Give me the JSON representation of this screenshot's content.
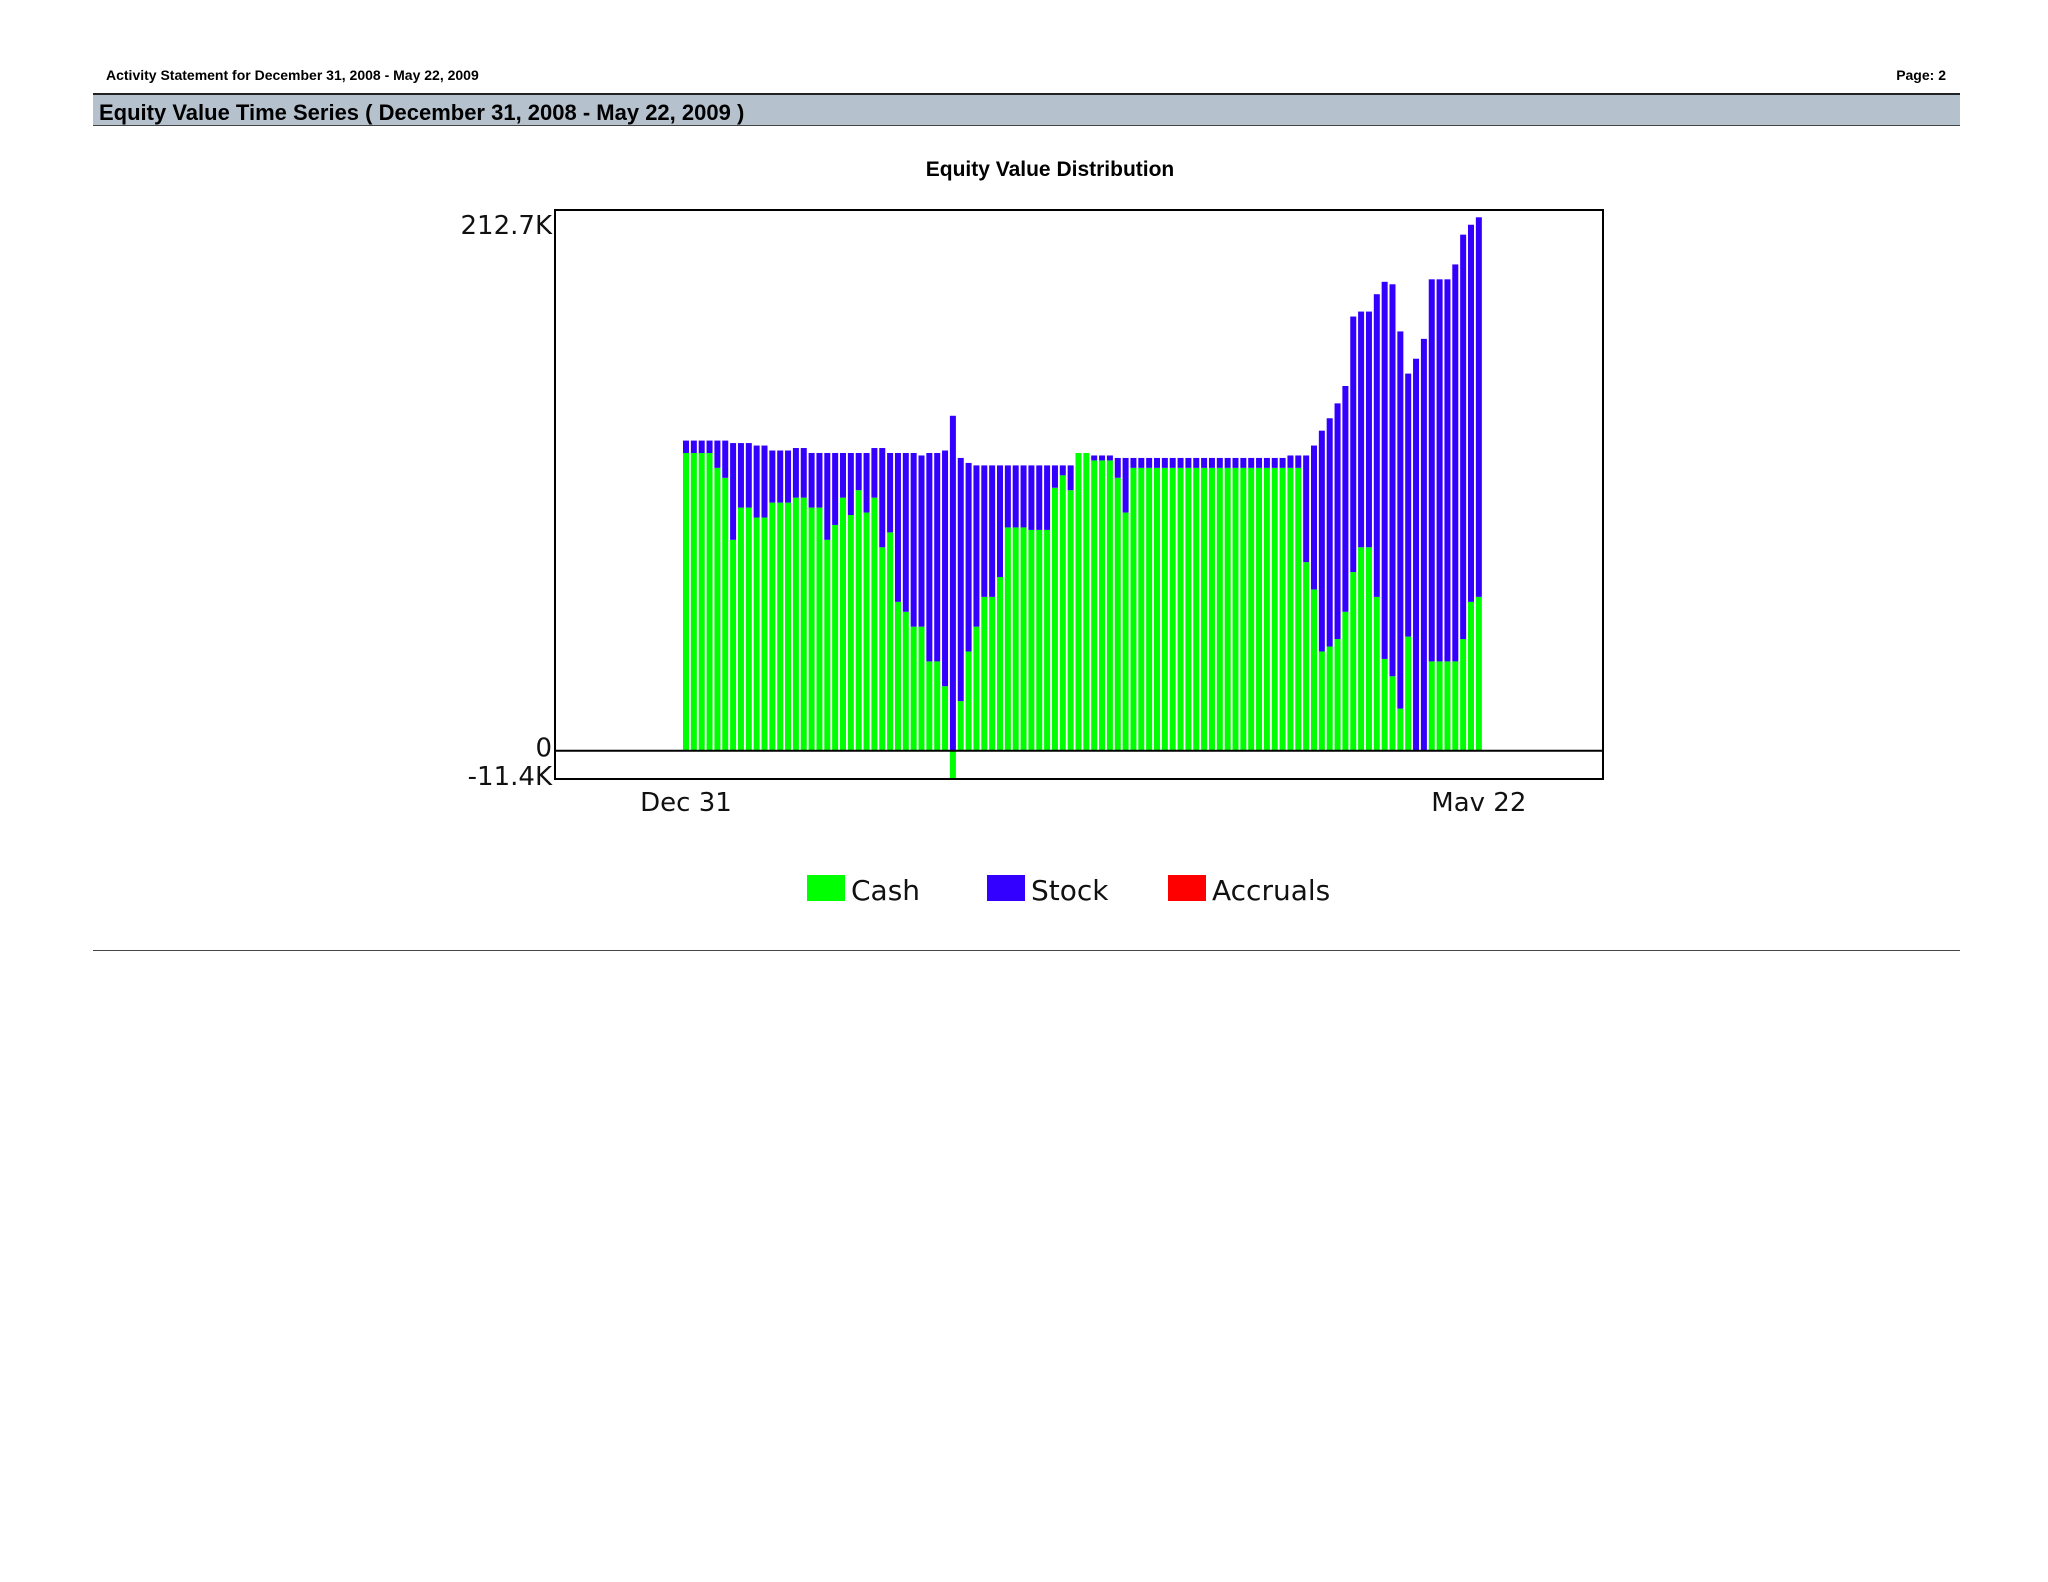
{
  "header": {
    "statement": "Activity Statement for December 31, 2008 - May 22, 2009",
    "page": "Page: 2"
  },
  "section": {
    "title": "Equity Value Time Series ( December 31, 2008 - May 22, 2009 )"
  },
  "colors": {
    "cash": "#00ff00",
    "stock": "#3300ff",
    "accruals": "#ff0000",
    "band": "#b5c1cd"
  },
  "chart_data": {
    "type": "bar",
    "stacked": true,
    "title": "Equity Value Distribution",
    "xlabel": "",
    "ylabel": "",
    "ylim": [
      -11.4,
      212.7
    ],
    "y_unit": "K",
    "yticks": [
      {
        "value": 212.7,
        "label": "212.7K"
      },
      {
        "value": 0,
        "label": "0"
      },
      {
        "value": -11.4,
        "label": "-11.4K"
      }
    ],
    "x_tick_labels": [
      {
        "index": 0,
        "label": "Dec 31"
      },
      {
        "index": 101,
        "label": "Mav 22"
      }
    ],
    "legend_position": "bottom-center",
    "series": [
      {
        "name": "Cash",
        "color": "#00ff00",
        "values": [
          120,
          120,
          120,
          120,
          114,
          110,
          85,
          98,
          98,
          94,
          94,
          100,
          100,
          100,
          102,
          102,
          98,
          98,
          85,
          91,
          102,
          95,
          105,
          96,
          102,
          82,
          88,
          60,
          56,
          50,
          50,
          36,
          36,
          26,
          -11,
          20,
          40,
          50,
          62,
          62,
          70,
          90,
          90,
          90,
          89,
          89,
          89,
          106,
          111,
          105,
          120,
          120,
          117,
          117,
          117,
          110,
          96,
          114,
          114,
          114,
          114,
          114,
          114,
          114,
          114,
          114,
          114,
          114,
          114,
          114,
          114,
          114,
          114,
          114,
          114,
          114,
          114,
          114,
          114,
          76,
          65,
          40,
          42,
          45,
          56,
          72,
          82,
          82,
          62,
          37,
          30,
          17,
          46,
          0,
          0,
          36,
          36,
          36,
          36,
          45,
          60,
          62
        ]
      },
      {
        "name": "Stock",
        "color": "#3300ff",
        "values": [
          5,
          5,
          5,
          5,
          11,
          15,
          39,
          26,
          26,
          29,
          29,
          21,
          21,
          21,
          20,
          20,
          22,
          22,
          35,
          29,
          18,
          25,
          15,
          24,
          20,
          40,
          32,
          60,
          64,
          70,
          69,
          84,
          84,
          95,
          135,
          98,
          76,
          65,
          53,
          53,
          45,
          25,
          25,
          25,
          26,
          26,
          26,
          9,
          4,
          10,
          0,
          0,
          2,
          2,
          2,
          8,
          22,
          4,
          4,
          4,
          4,
          4,
          4,
          4,
          4,
          4,
          4,
          4,
          4,
          4,
          4,
          4,
          4,
          4,
          4,
          4,
          4,
          5,
          5,
          43,
          58,
          89,
          92,
          95,
          91,
          103,
          95,
          95,
          122,
          152,
          158,
          152,
          106,
          158,
          166,
          154,
          154,
          154,
          160,
          163,
          152,
          153
        ]
      },
      {
        "name": "Accruals",
        "color": "#ff0000",
        "values": [
          0,
          0,
          0,
          0,
          0,
          0,
          0,
          0,
          0,
          0,
          0,
          0,
          0,
          0,
          0,
          0,
          0,
          0,
          0,
          0,
          0,
          0,
          0,
          0,
          0,
          0,
          0,
          0,
          0,
          0,
          0,
          0,
          0,
          0,
          0,
          0,
          0,
          0,
          0,
          0,
          0,
          0,
          0,
          0,
          0,
          0,
          0,
          0,
          0,
          0,
          0,
          0,
          0,
          0,
          0,
          0,
          0,
          0,
          0,
          0,
          0,
          0,
          0,
          0,
          0,
          0,
          0,
          0,
          0,
          0,
          0,
          0,
          0,
          0,
          0,
          0,
          0,
          0,
          0,
          0,
          0,
          0,
          0,
          0,
          0,
          0,
          0,
          0,
          0,
          0,
          0,
          0,
          0,
          0,
          0,
          0,
          0,
          0,
          0,
          0,
          0,
          0
        ]
      }
    ]
  }
}
